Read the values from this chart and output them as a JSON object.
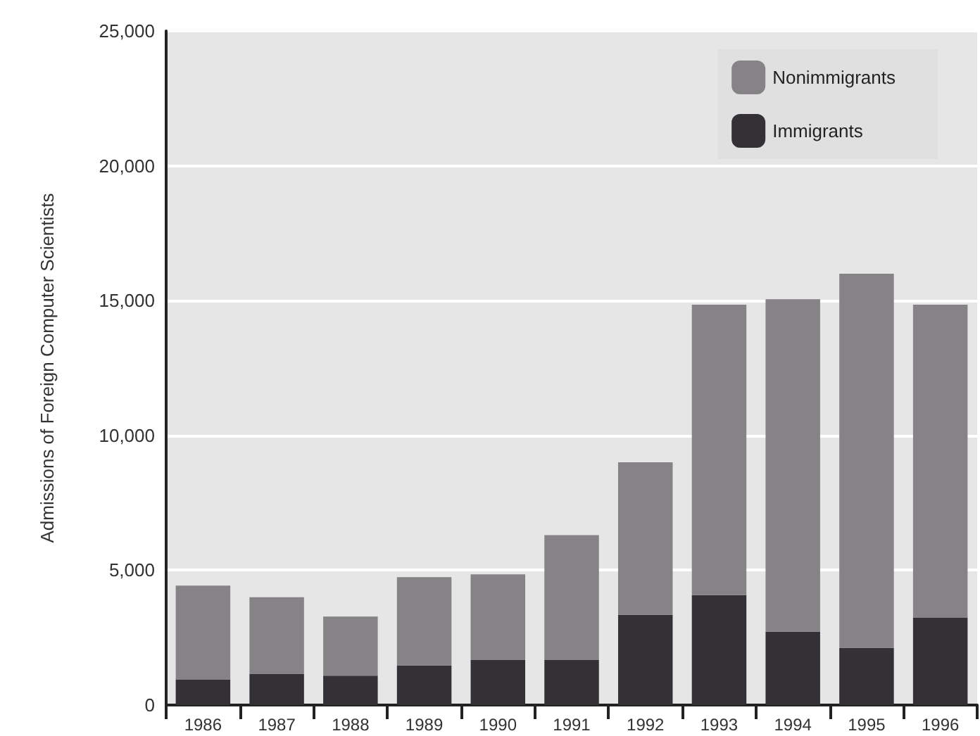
{
  "chart_data": {
    "type": "bar",
    "ylabel": "Admissions of Foreign Computer Scientists",
    "categories": [
      "1986",
      "1987",
      "1988",
      "1989",
      "1990",
      "1991",
      "1992",
      "1993",
      "1994",
      "1995",
      "1996"
    ],
    "series": [
      {
        "name": "Immigrants",
        "color": "#333135",
        "values": [
          950,
          1160,
          1090,
          1470,
          1680,
          1680,
          3350,
          4080,
          2720,
          2120,
          3250
        ]
      },
      {
        "name": "Nonimmigrants",
        "color": "#858385",
        "values": [
          3480,
          2840,
          2190,
          3270,
          3170,
          4620,
          5650,
          10770,
          12330,
          13880,
          11600
        ]
      }
    ],
    "stacked": true,
    "ylim": [
      0,
      25000
    ],
    "yticks": [
      0,
      {
        "value": 5000,
        "label": "5,000"
      },
      {
        "value": 10000,
        "label": "10,000"
      },
      {
        "value": 15000,
        "label": "15,000"
      },
      {
        "value": 20000,
        "label": "20,000"
      },
      {
        "value": 25000,
        "label": "25,000"
      }
    ],
    "grid": "y",
    "legend": "top right"
  }
}
